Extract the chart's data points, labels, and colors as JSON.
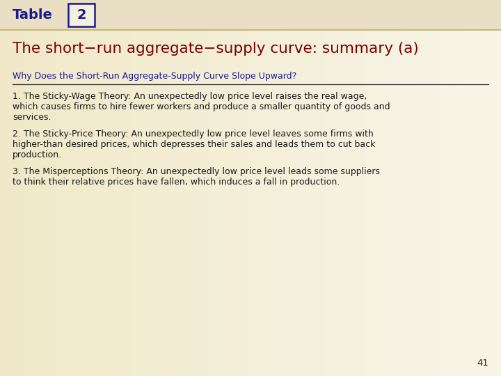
{
  "table_label": "Table",
  "table_number": "2",
  "title": "The short−run aggregate−supply curve: summary (a)",
  "section_header": "Why Does the Short-Run Aggregate-Supply Curve Slope Upward?",
  "p1_l1": "1. The Sticky-Wage Theory: An unexpectedly low price level raises the real wage,",
  "p1_l2": "which causes firms to hire fewer workers and produce a smaller quantity of goods and",
  "p1_l3": "services.",
  "p2_l1": "2. The Sticky-Price Theory: An unexpectedly low price level leaves some firms with",
  "p2_l2": "higher-than desired prices, which depresses their sales and leads them to cut back",
  "p2_l3": "production.",
  "p3_l1": "3. The Misperceptions Theory: An unexpectedly low price level leads some suppliers",
  "p3_l2": "to think their relative prices have fallen, which induces a fall in production.",
  "page_number": "41",
  "bg_color": "#f5f0dc",
  "header_bg": "#e8dfc4",
  "table_label_color": "#1a1a8c",
  "table_number_color": "#1a1a8c",
  "title_color": "#7a0000",
  "section_header_color": "#1a1a8c",
  "body_text_color": "#1a1a1a",
  "page_number_color": "#1a1a1a",
  "divider_color": "#333333",
  "box_border_color": "#1a1a8c"
}
